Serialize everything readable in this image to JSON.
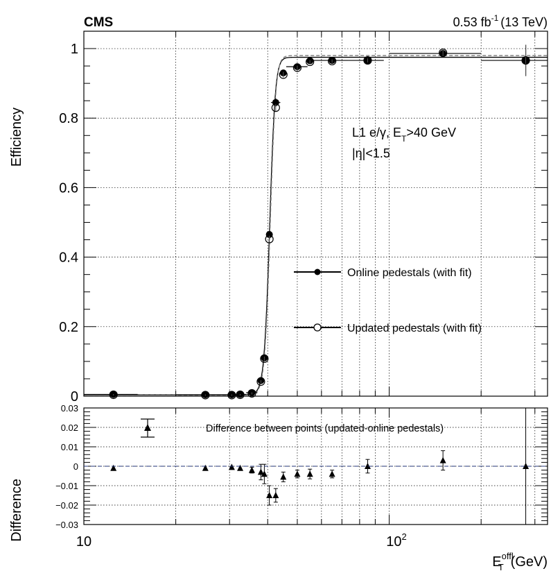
{
  "header": {
    "experiment": "CMS",
    "lumi": "0.53 fb",
    "lumi_sup": "-1",
    "energy": "(13 TeV)"
  },
  "chart_data": [
    {
      "type": "scatter",
      "panel": "efficiency",
      "ylabel": "Efficiency",
      "xscale": "log",
      "xlim": [
        10,
        330
      ],
      "ylim": [
        0,
        1.05
      ],
      "grid": true,
      "yticks": [
        0,
        0.2,
        0.4,
        0.6,
        0.8,
        1
      ],
      "ytick_labels": [
        "0",
        "0.2",
        "0.4",
        "0.6",
        "0.8",
        "1"
      ],
      "annotation": {
        "line1_a": "L1 e/",
        "line1_gamma": "γ",
        "line1_b": ", E",
        "line1_sub": "T",
        "line1_c": ">40 GeV",
        "line2": "|η|<1.5"
      },
      "legend": {
        "placement": "center-right",
        "entries": [
          "Online pedestals (with fit)",
          "Updated pedestals (with fit)"
        ]
      },
      "series": [
        {
          "name": "Online pedestals (with fit)",
          "marker": "filled-circle",
          "x": [
            12.5,
            25,
            30.5,
            32.5,
            35.5,
            38,
            39,
            40.5,
            42.5,
            45,
            50,
            55,
            65,
            85,
            150,
            280
          ],
          "xlo": [
            10,
            20,
            30,
            31,
            34,
            37,
            38.5,
            40,
            41,
            44,
            46,
            54,
            56,
            74,
            100,
            200
          ],
          "xhi": [
            15,
            30,
            31,
            34,
            37,
            38.5,
            39.5,
            41,
            44,
            46,
            54,
            56,
            74,
            96,
            200,
            330
          ],
          "y": [
            0.005,
            0.004,
            0.004,
            0.005,
            0.01,
            0.045,
            0.11,
            0.465,
            0.845,
            0.93,
            0.948,
            0.965,
            0.966,
            0.966,
            0.986,
            0.966
          ],
          "yerr": [
            0.002,
            0.002,
            0.002,
            0.002,
            0.003,
            0.004,
            0.006,
            0.01,
            0.012,
            0.008,
            0.006,
            0.005,
            0.005,
            0.006,
            0.01,
            0.045
          ]
        },
        {
          "name": "Updated pedestals (with fit)",
          "marker": "open-circle",
          "x": [
            12.5,
            25,
            30.5,
            32.5,
            35.5,
            38,
            39,
            40.5,
            42.5,
            45,
            50,
            55,
            65,
            85,
            150,
            280
          ],
          "y": [
            0.004,
            0.003,
            0.003,
            0.004,
            0.008,
            0.042,
            0.108,
            0.452,
            0.83,
            0.925,
            0.945,
            0.962,
            0.964,
            0.966,
            0.988,
            0.966
          ],
          "yerr": [
            0.002,
            0.002,
            0.002,
            0.002,
            0.003,
            0.004,
            0.006,
            0.01,
            0.012,
            0.008,
            0.006,
            0.005,
            0.005,
            0.006,
            0.01,
            0.045
          ]
        }
      ]
    },
    {
      "type": "scatter",
      "panel": "difference",
      "ylabel": "Difference",
      "xlabel": "E",
      "xlabel_sub": "T",
      "xlabel_sup": "offl",
      "xlabel_unit": "(GeV)",
      "xscale": "log",
      "xlim": [
        10,
        330
      ],
      "ylim": [
        -0.03,
        0.03
      ],
      "grid": true,
      "yticks": [
        -0.03,
        -0.02,
        -0.01,
        0,
        0.01,
        0.02,
        0.03
      ],
      "ytick_labels": [
        "−0.03",
        "−0.02",
        "−0.01",
        "0",
        "0.01",
        "0.02",
        "0.03"
      ],
      "xtick_labels": [
        "10",
        "10"
      ],
      "xtick_sup": "2",
      "legend": {
        "entries": [
          "Difference between points (updated-online pedestals)"
        ]
      },
      "series": [
        {
          "name": "Difference between points (updated-online pedestals)",
          "marker": "filled-triangle",
          "x": [
            12.5,
            25,
            30.5,
            32.5,
            35.5,
            38,
            39,
            40.5,
            42.5,
            45,
            50,
            55,
            65,
            85,
            150,
            280
          ],
          "y": [
            -0.001,
            -0.001,
            -0.0005,
            -0.001,
            -0.002,
            -0.003,
            -0.004,
            -0.015,
            -0.015,
            -0.0055,
            -0.004,
            -0.004,
            -0.004,
            0,
            0.003,
            0
          ],
          "yerr": [
            0,
            0,
            0,
            0,
            0.0015,
            0.004,
            0.005,
            0.005,
            0.0035,
            0.0025,
            0.002,
            0.0025,
            0.002,
            0.0035,
            0.005,
            0.045
          ]
        }
      ]
    }
  ]
}
